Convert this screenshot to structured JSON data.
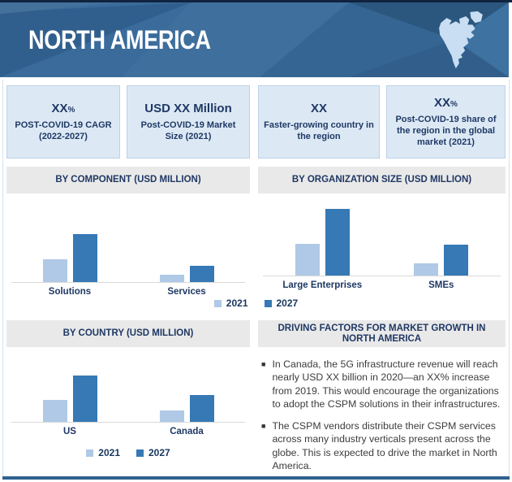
{
  "banner": {
    "title": "NORTH AMERICA",
    "map_icon": "north-america-map"
  },
  "stats": {
    "cards": [
      {
        "value": "XX",
        "suffix": "%",
        "desc": "POST-COVID-19 CAGR (2022-2027)"
      },
      {
        "value": "USD XX Million",
        "suffix": "",
        "desc": "Post-COVID-19 Market Size (2021)"
      },
      {
        "value": "XX",
        "suffix": "",
        "desc": "Faster-growing country in the region"
      },
      {
        "value": "XX",
        "suffix": "%",
        "desc": "Post-COVID-19 share of the region in the global market (2021)"
      }
    ]
  },
  "sections": {
    "component": "BY COMPONENT (USD MILLION)",
    "org_size": "BY ORGANIZATION SIZE (USD MILLION)",
    "country": "BY COUNTRY (USD MILLION)",
    "driving": "DRIVING FACTORS FOR MARKET GROWTH IN NORTH AMERICA"
  },
  "legend": {
    "y2021": "2021",
    "y2027": "2027"
  },
  "driving_factors": {
    "bullets": [
      "In Canada, the 5G infrastructure revenue will reach nearly USD XX billion in 2020—an XX% increase from 2019. This would encourage the organizations to adopt the CSPM solutions in their infrastructures.",
      "The CSPM vendors distribute their CSPM services across many industry verticals present across the globe. This is expected to drive the market in North America."
    ]
  },
  "colors": {
    "banner_blue": "#3a6b9b",
    "navy_text": "#1f3864",
    "stat_card_bg": "#dce9f5",
    "stat_card_border": "#bcd1e8",
    "section_header_bg": "#e9e9e9",
    "bar_2021": "#afc9e6",
    "bar_2027": "#3679b5",
    "bottom_bar": "#2e618f",
    "map_fill": "#c9def2"
  },
  "chart_data": [
    {
      "type": "bar",
      "title": "BY COMPONENT (USD MILLION)",
      "categories": [
        "Solutions",
        "Services"
      ],
      "series": [
        {
          "name": "2021",
          "values": [
            28,
            9
          ]
        },
        {
          "name": "2027",
          "values": [
            59,
            20
          ]
        }
      ],
      "ylabel": "USD Million",
      "note": "Actual values masked as XX in source; bar values are estimated relative heights",
      "legend_position": "bottom",
      "grid": false
    },
    {
      "type": "bar",
      "title": "BY ORGANIZATION SIZE (USD MILLION)",
      "categories": [
        "Large Enterprises",
        "SMEs"
      ],
      "series": [
        {
          "name": "2021",
          "values": [
            39,
            15
          ]
        },
        {
          "name": "2027",
          "values": [
            82,
            38
          ]
        }
      ],
      "ylabel": "USD Million",
      "note": "Actual values masked as XX in source; bar values are estimated relative heights",
      "legend_position": "bottom",
      "grid": false
    },
    {
      "type": "bar",
      "title": "BY COUNTRY (USD MILLION)",
      "categories": [
        "US",
        "Canada"
      ],
      "series": [
        {
          "name": "2021",
          "values": [
            27,
            14
          ]
        },
        {
          "name": "2027",
          "values": [
            57,
            33
          ]
        }
      ],
      "ylabel": "USD Million",
      "note": "Actual values masked as XX in source; bar values are estimated relative heights",
      "legend_position": "bottom",
      "grid": false
    }
  ]
}
